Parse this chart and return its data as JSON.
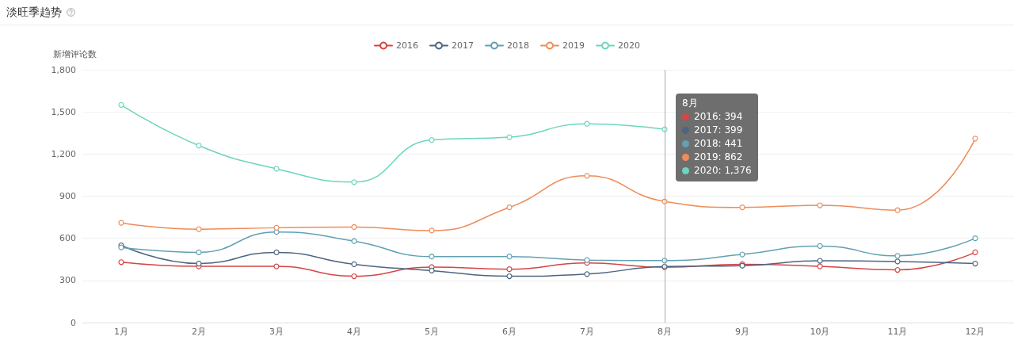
{
  "chart_data": {
    "type": "line",
    "title": "淡旺季趋势",
    "ylabel": "新增评论数",
    "categories": [
      "1月",
      "2月",
      "3月",
      "4月",
      "5月",
      "6月",
      "7月",
      "8月",
      "9月",
      "10月",
      "11月",
      "12月"
    ],
    "series": [
      {
        "name": "2016",
        "color": "#d64545",
        "values": [
          430,
          400,
          400,
          330,
          395,
          380,
          425,
          394,
          415,
          400,
          375,
          500
        ]
      },
      {
        "name": "2017",
        "color": "#4d6580",
        "values": [
          550,
          420,
          500,
          415,
          370,
          330,
          345,
          399,
          405,
          440,
          435,
          420
        ]
      },
      {
        "name": "2018",
        "color": "#62a0b2",
        "values": [
          535,
          500,
          645,
          580,
          470,
          470,
          445,
          441,
          485,
          545,
          475,
          600
        ]
      },
      {
        "name": "2019",
        "color": "#ee8c5a",
        "values": [
          710,
          665,
          675,
          680,
          655,
          820,
          1045,
          862,
          820,
          835,
          800,
          1310
        ]
      },
      {
        "name": "2020",
        "color": "#6dd5be",
        "values": [
          1550,
          1260,
          1095,
          1000,
          1300,
          1320,
          1415,
          1376,
          null,
          null,
          null,
          null
        ]
      }
    ],
    "ylim": [
      0,
      1800
    ],
    "yticks": [
      0,
      300,
      600,
      900,
      {
        "value": 1200,
        "label": "1,200"
      },
      {
        "value": 1500,
        "label": "1,500"
      },
      {
        "value": 1800,
        "label": "1,800"
      }
    ],
    "grid": "y",
    "legend": "top",
    "marker": "circle",
    "ref_lines": [
      {
        "axis": "x",
        "value": "8月",
        "color": "#aaaaaa"
      }
    ],
    "annotations": [
      "8月",
      "2016: 394",
      "2017: 399",
      "2018: 441",
      "2019: 862",
      "2020: 1,376"
    ]
  }
}
